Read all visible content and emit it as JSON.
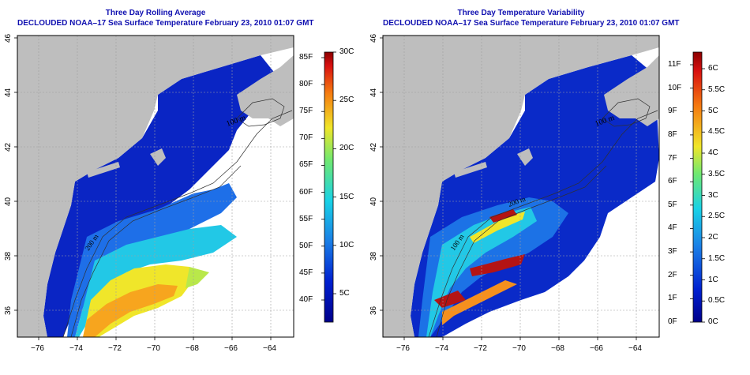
{
  "left_panel": {
    "title_line1": "Three Day Rolling Average",
    "title_line2": "DECLOUDED NOAA–17 Sea Surface Temperature February 23, 2010 01:07 GMT",
    "contour_labels": [
      "100 m",
      "200 m",
      "100 m"
    ],
    "colorbar": {
      "labels_f": [
        "85F",
        "80F",
        "75F",
        "70F",
        "65F",
        "60F",
        "55F",
        "50F",
        "45F",
        "40F"
      ],
      "labels_c": [
        "30C",
        "25C",
        "20C",
        "15C",
        "10C",
        "5C"
      ]
    }
  },
  "right_panel": {
    "title_line1": "Three Day Temperature Variability",
    "title_line2": "DECLOUDED NOAA–17 Sea Surface Temperature February 23, 2010 01:07 GMT",
    "contour_labels": [
      "100 m",
      "200 m",
      "100 m"
    ],
    "colorbar": {
      "labels_f": [
        "11F",
        "10F",
        "9F",
        "8F",
        "7F",
        "6F",
        "5F",
        "4F",
        "3F",
        "2F",
        "1F",
        "0F"
      ],
      "labels_c": [
        "6C",
        "5.5C",
        "5C",
        "4.5C",
        "4C",
        "3.5C",
        "3C",
        "2.5C",
        "2C",
        "1.5C",
        "1C",
        "0.5C",
        "0C"
      ]
    }
  },
  "axes": {
    "x_ticks": [
      "−76",
      "−74",
      "−72",
      "−70",
      "−68",
      "−66",
      "−64"
    ],
    "y_ticks": [
      "46",
      "44",
      "42",
      "40",
      "38",
      "36"
    ]
  },
  "colors": {
    "land": "#bebebe",
    "title": "#1010b0",
    "ocean_cold": "#0a1fbf",
    "ocean_mid": "#1b63e6",
    "cyan": "#19c8e6",
    "yellow": "#f0e629",
    "orange": "#f5a01e",
    "red": "#b41414"
  }
}
